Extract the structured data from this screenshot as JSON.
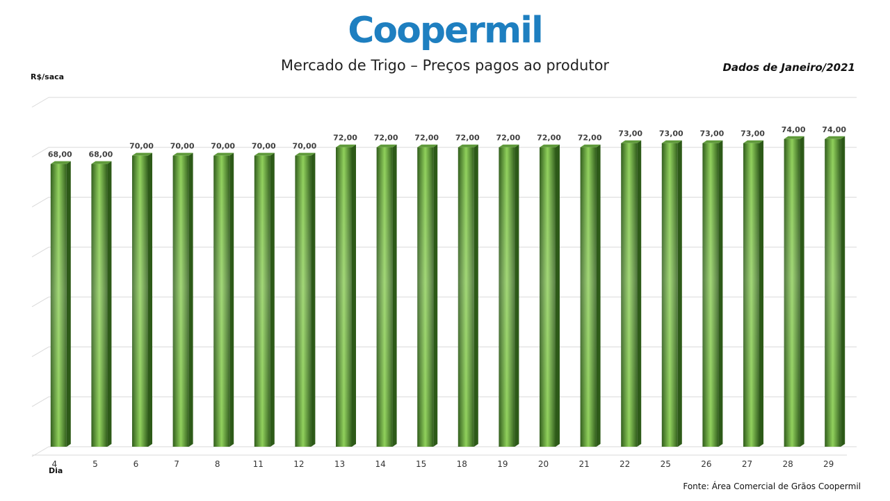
{
  "logo": {
    "text": "Coopermil"
  },
  "chart_data": {
    "type": "bar",
    "title": "Mercado de Trigo – Preços pagos ao produtor",
    "subtitle": "Dados de Janeiro/2021",
    "ylabel": "R$/saca",
    "xlabel": "Dia",
    "source": "Fonte:  Área Comercial de Grãos Coopermil",
    "categories": [
      "4",
      "5",
      "6",
      "7",
      "8",
      "11",
      "12",
      "13",
      "14",
      "15",
      "18",
      "19",
      "20",
      "21",
      "22",
      "25",
      "26",
      "27",
      "28",
      "29"
    ],
    "values": [
      68,
      68,
      70,
      70,
      70,
      70,
      70,
      72,
      72,
      72,
      72,
      72,
      72,
      72,
      73,
      73,
      73,
      73,
      74,
      74
    ],
    "labels": [
      "68,00",
      "68,00",
      "70,00",
      "70,00",
      "70,00",
      "70,00",
      "70,00",
      "72,00",
      "72,00",
      "72,00",
      "72,00",
      "72,00",
      "72,00",
      "72,00",
      "73,00",
      "73,00",
      "73,00",
      "73,00",
      "74,00",
      "74,00"
    ],
    "ylim": [
      0,
      84
    ],
    "grid": true,
    "colors": {
      "bar": "#4e8a2e",
      "bar_light": "#8fd05a",
      "bar_dark": "#2d5a18"
    }
  }
}
